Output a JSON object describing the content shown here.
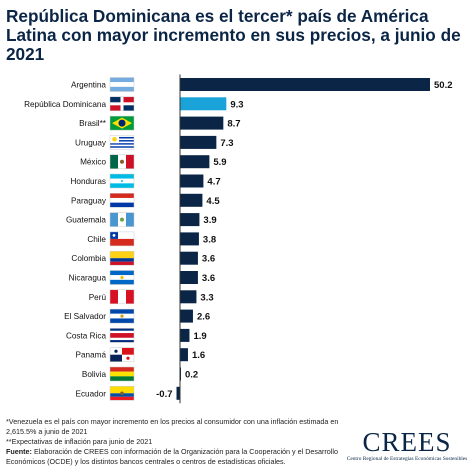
{
  "chart_data": {
    "type": "bar",
    "orientation": "horizontal",
    "title": "República Dominicana es el tercer* país de América Latina con mayor incremento en sus precios, a junio de 2021",
    "categories": [
      "Argentina",
      "República Dominicana",
      "Brasil**",
      "Uruguay",
      "México",
      "Honduras",
      "Paraguay",
      "Guatemala",
      "Chile",
      "Colombia",
      "Nicaragua",
      "Perú",
      "El Salvador",
      "Costa Rica",
      "Panamá",
      "Bolivia",
      "Ecuador"
    ],
    "values": [
      50.2,
      9.3,
      8.7,
      7.3,
      5.9,
      4.7,
      4.5,
      3.9,
      3.8,
      3.6,
      3.6,
      3.3,
      2.6,
      1.9,
      1.6,
      0.2,
      -0.7
    ],
    "value_labels": [
      "50.2",
      "9.3",
      "8.7",
      "7.3",
      "5.9",
      "4.7",
      "4.5",
      "3.9",
      "3.8",
      "3.6",
      "3.6",
      "3.3",
      "2.6",
      "1.9",
      "1.6",
      "0.2",
      "-0.7"
    ],
    "flags": [
      "argentina-flag",
      "dominican-republic-flag",
      "brazil-flag",
      "uruguay-flag",
      "mexico-flag",
      "honduras-flag",
      "paraguay-flag",
      "guatemala-flag",
      "chile-flag",
      "colombia-flag",
      "nicaragua-flag",
      "peru-flag",
      "el-salvador-flag",
      "costa-rica-flag",
      "panama-flag",
      "bolivia-flag",
      "ecuador-flag"
    ],
    "highlight_category": "República Dominicana",
    "colors": {
      "bar": "#0b2546",
      "highlight": "#1aa3d8",
      "axis": "#333333"
    },
    "xlim": [
      -0.7,
      50.2
    ],
    "legend": "none",
    "grid": false
  },
  "notes": {
    "note1": "*Venezuela es el país con mayor incremento en los precios al consumidor con una inflación estimada en 2,615.5% a junio de 2021",
    "note2": "**Expectativas de inflación para junio de 2021",
    "source_label": "Fuente:",
    "source_text": "Elaboración de CREES con información de la Organización para la Cooperación y el Desarrollo Económicos (OCDE) y los distintos bancos centrales o centros de estadísticas oficiales."
  },
  "logo": {
    "word": "CREES",
    "tagline": "Centro Regional de Estrategias Económicas Sostenibles"
  }
}
